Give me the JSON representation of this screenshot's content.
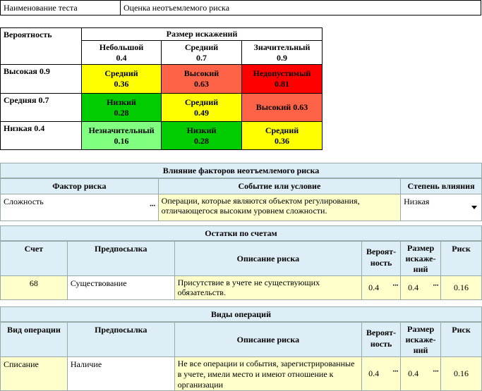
{
  "test_name": {
    "label": "Наименование теста",
    "value": "Оценка неотъемлемого риска"
  },
  "matrix": {
    "corner": "Вероятность",
    "size_header": "Размер искажений",
    "columns": [
      {
        "name": "Небольшой",
        "value": "0.4"
      },
      {
        "name": "Средний",
        "value": "0.7"
      },
      {
        "name": "Значительный",
        "value": "0.9"
      }
    ],
    "rows": [
      {
        "label": "Высокая 0.9",
        "cells": [
          {
            "name": "Средний",
            "value": "0.36",
            "color": "#ffff00"
          },
          {
            "name": "Высокий",
            "value": "0.63",
            "color": "#ff6347"
          },
          {
            "name": "Недопустимый",
            "value": "0.81",
            "color": "#ff0000"
          }
        ]
      },
      {
        "label": "Средняя 0.7",
        "cells": [
          {
            "name": "Низкий",
            "value": "0.28",
            "color": "#00cc00"
          },
          {
            "name": "Средний",
            "value": "0.49",
            "color": "#ffff00"
          },
          {
            "name": "Высокий 0.63",
            "value": "",
            "color": "#ff6347"
          }
        ]
      },
      {
        "label": "Низкая 0.4",
        "cells": [
          {
            "name": "Незначительный",
            "value": "0.16",
            "color": "#80ff80"
          },
          {
            "name": "Низкий",
            "value": "0.28",
            "color": "#00cc00"
          },
          {
            "name": "Средний",
            "value": "0.36",
            "color": "#ffff00"
          }
        ]
      }
    ]
  },
  "factors": {
    "title": "Влияние факторов неотъемлемого риска",
    "headers": [
      "Фактор риска",
      "Событие или условие",
      "Степень влияния"
    ],
    "row": {
      "factor": "Сложность",
      "event": "Операции, которые являются объектом регулирования, отличающегося высоким уровнем сложности.",
      "degree": "Низкая"
    }
  },
  "accounts": {
    "title": "Остатки по счетам",
    "headers": [
      "Счет",
      "Предпосылка",
      "Описание риска",
      "Вероят-ность",
      "Размер искаже-ний",
      "Риск"
    ],
    "row": {
      "account": "68",
      "premise": "Существование",
      "description": "Присутствие в учете не существующих обязательств.",
      "probability": "0.4",
      "size": "0.4",
      "risk": "0.16"
    }
  },
  "operations": {
    "title": "Виды операций",
    "headers": [
      "Вид операции",
      "Предпосылка",
      "Описание риска",
      "Вероят-ность",
      "Размер искаже-ний",
      "Риск"
    ],
    "row": {
      "operation": "Списание",
      "premise": "Наличие",
      "description": "Не все операции и события, зарегистрированные в учете, имели место и имеют отношение к организации",
      "probability": "0.4",
      "size": "0.4",
      "risk": "0.16"
    }
  },
  "ellipsis": "···"
}
